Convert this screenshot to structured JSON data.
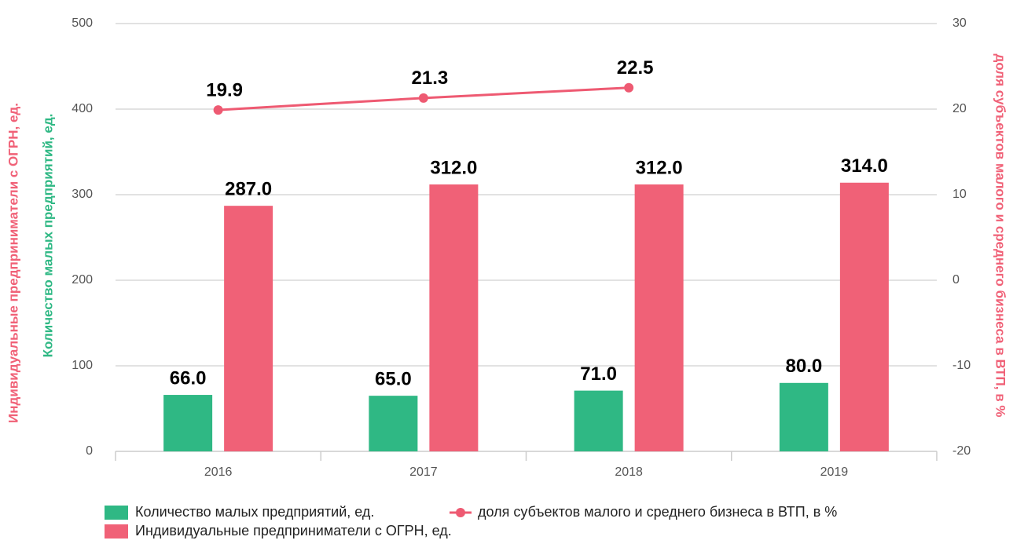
{
  "chart_data": {
    "type": "bar",
    "categories": [
      "2016",
      "2017",
      "2018",
      "2019"
    ],
    "y_label": "Количество малых предприятий, ед.",
    "y_label_2": "Индивидуальные предприниматели с ОГРН, ед.",
    "y2_label": "доля субъектов малого и среднего бизнеса в ВТП, в %",
    "ylim": [
      0,
      500
    ],
    "yticks": [
      0,
      100,
      200,
      300,
      400,
      500
    ],
    "y2lim": [
      -20,
      30
    ],
    "y2ticks": [
      -20,
      -10,
      0,
      10,
      20,
      30
    ],
    "grid": true,
    "series": [
      {
        "name": "Количество малых предприятий, ед.",
        "type": "bar",
        "color": "#2fb884",
        "values": [
          66,
          65,
          71,
          80
        ],
        "value_labels": [
          "66.0",
          "65.0",
          "71.0",
          "80.0"
        ]
      },
      {
        "name": "Индивидуальные предприниматели с ОГРН, ед.",
        "type": "bar",
        "color": "#f06177",
        "values": [
          287,
          312,
          312,
          314
        ],
        "value_labels": [
          "287.0",
          "312.0",
          "312.0",
          "314.0"
        ]
      },
      {
        "name": "доля субъектов малого и среднего бизнеса в ВТП, в %",
        "type": "line",
        "axis": "y2",
        "color": "#ee5a72",
        "values": [
          19.9,
          21.3,
          22.5,
          null
        ]
      }
    ]
  }
}
